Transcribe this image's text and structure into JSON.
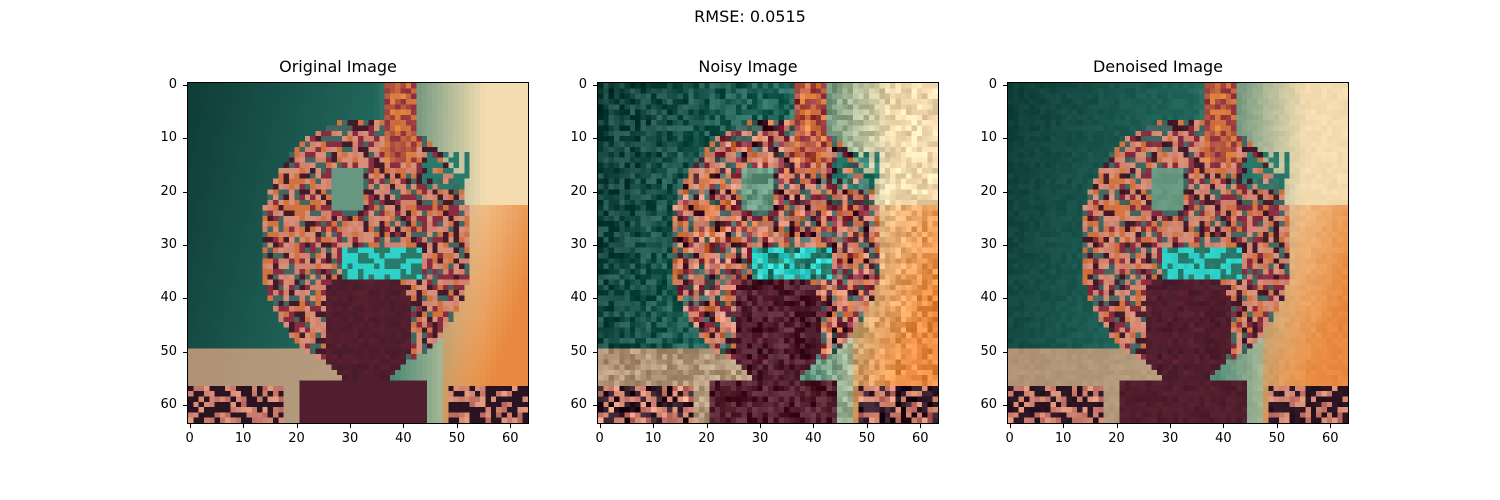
{
  "figure": {
    "suptitle": "RMSE: 0.0515"
  },
  "panels": [
    {
      "title": "Original Image",
      "variant": "original"
    },
    {
      "title": "Noisy Image",
      "variant": "noisy"
    },
    {
      "title": "Denoised Image",
      "variant": "denoised"
    }
  ],
  "axes": {
    "x_ticks": [
      "0",
      "10",
      "20",
      "30",
      "40",
      "50",
      "60"
    ],
    "y_ticks": [
      "0",
      "10",
      "20",
      "30",
      "40",
      "50",
      "60"
    ],
    "pixel_grid": "64x64"
  },
  "palette": {
    "teal_dark": "#0f3d38",
    "teal": "#2a7a6b",
    "peach": "#f2b08a",
    "cream": "#f5dcb0",
    "orange": "#e8893f",
    "magenta": "#8a2c3f",
    "dark": "#2a1422",
    "cyan": "#2fd2c8",
    "salmon": "#e8a080"
  }
}
